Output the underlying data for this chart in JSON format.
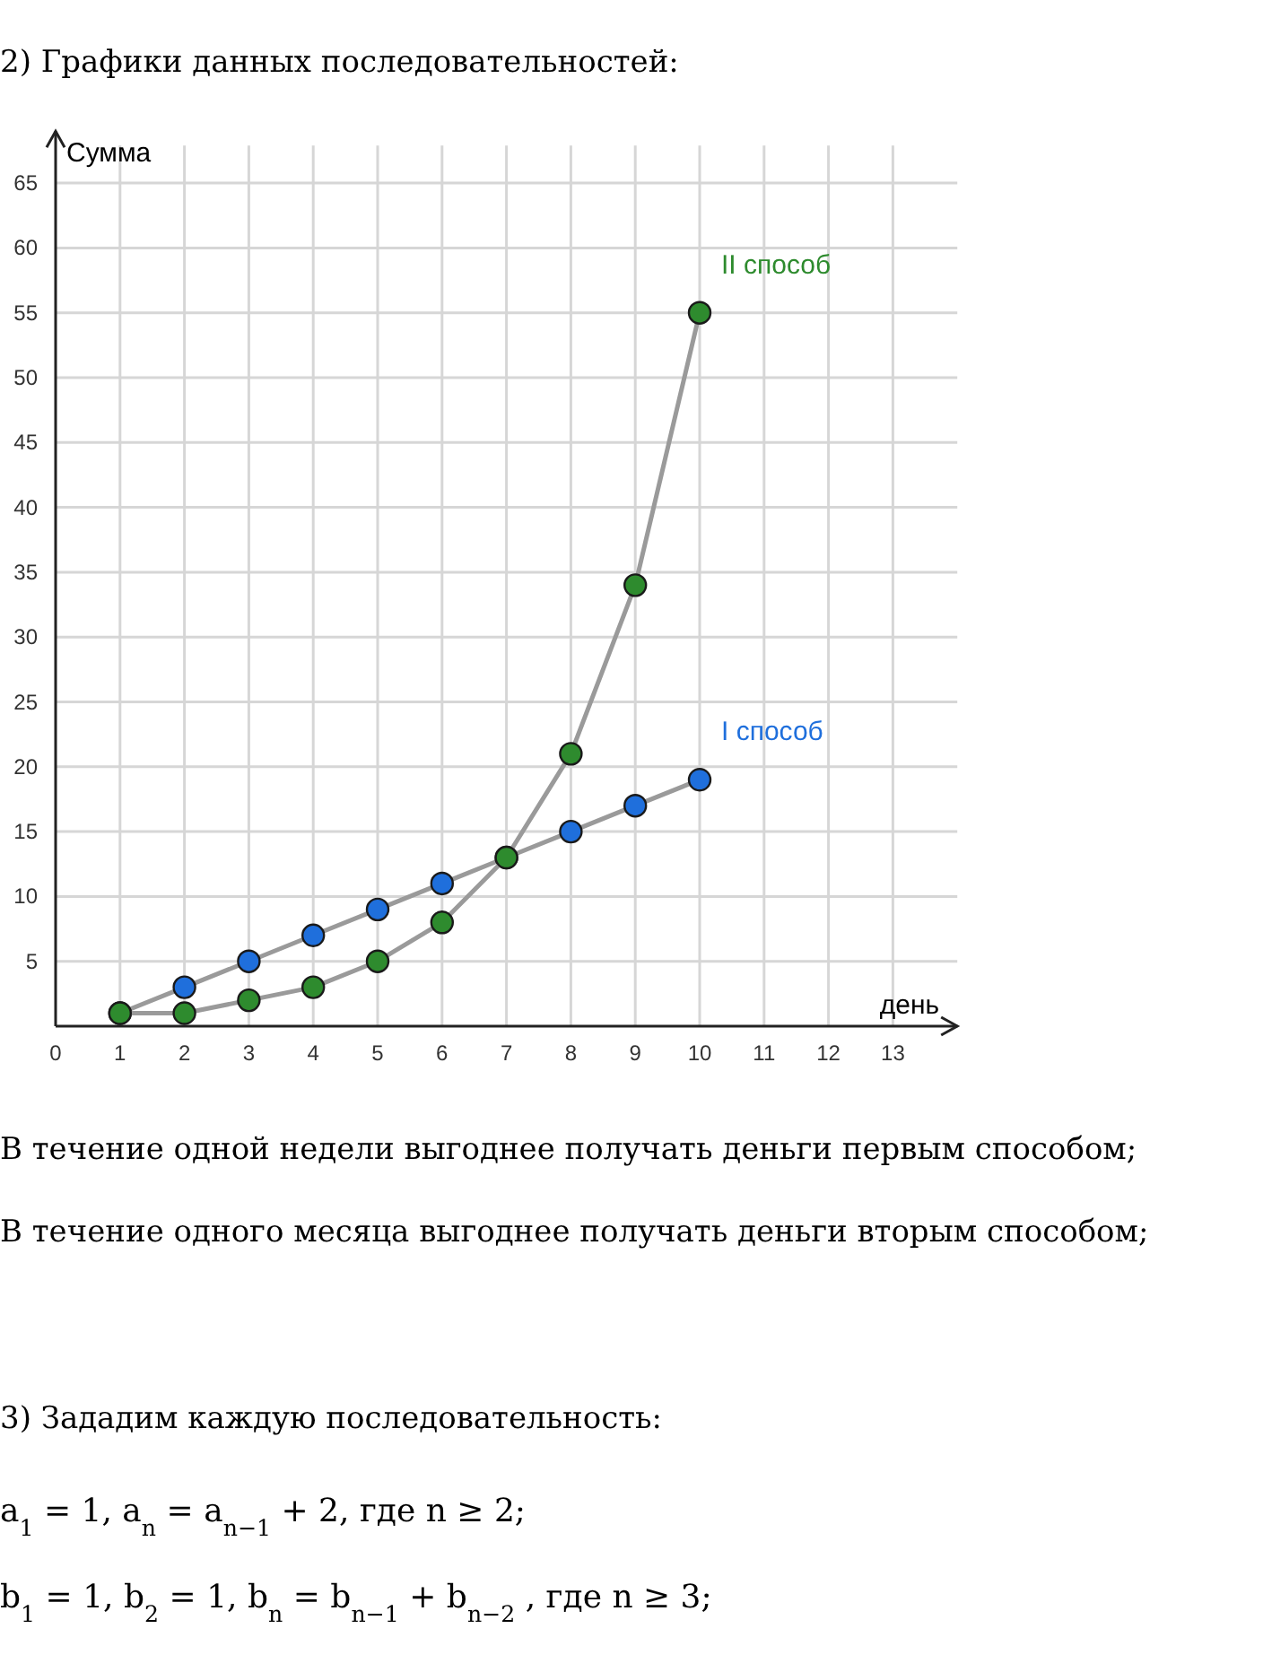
{
  "chart_data": {
    "type": "line",
    "title": "2) Графики данных последовательностей:",
    "xlabel": "день",
    "ylabel": "Сумма",
    "x": [
      1,
      2,
      3,
      4,
      5,
      6,
      7,
      8,
      9,
      10
    ],
    "series": [
      {
        "name": "I способ",
        "color": "#1f6fdc",
        "values": [
          1,
          3,
          5,
          7,
          9,
          11,
          13,
          15,
          17,
          19
        ]
      },
      {
        "name": "II способ",
        "color": "#2e8b2e",
        "values": [
          1,
          1,
          2,
          3,
          5,
          8,
          13,
          21,
          34,
          55
        ]
      }
    ],
    "xlim": [
      0,
      14
    ],
    "ylim": [
      0,
      69
    ],
    "xticks": [
      0,
      1,
      2,
      3,
      4,
      5,
      6,
      7,
      8,
      9,
      10,
      11,
      12,
      13
    ],
    "yticks": [
      5,
      10,
      15,
      20,
      25,
      30,
      35,
      40,
      45,
      50,
      55,
      60,
      65
    ],
    "grid": true,
    "legend": false,
    "marker": "circle",
    "line_style": "solid",
    "annotations": [
      "В течение одной недели выгоднее получать деньги первым способом;",
      "В течение одного месяца выгоднее получать деньги вторым способом;",
      "3) Зададим каждую последовательность:",
      "a$_{1}$ = 1,  a$_{n}$ = a$_{n−1}$ + 2, где n ≥ 2;",
      "b$_{1}$ = 1,  b$_{2}$ = 1,  b$_{n}$ = b$_{n−1}$ + b$_{n−2}$, где n ≥ 3;"
    ]
  }
}
